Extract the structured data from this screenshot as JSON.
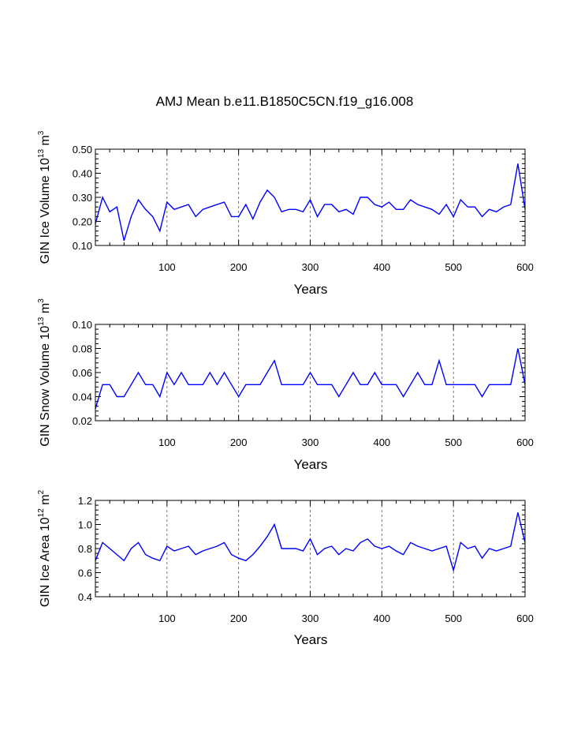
{
  "title": "AMJ Mean b.e11.B1850C5CN.f19_g16.008",
  "colors": {
    "series": "#0000ff",
    "axis": "#000000",
    "grid": "#555555"
  },
  "chart_data": [
    {
      "type": "line",
      "ylabel": {
        "main": "GIN Ice Volume 10",
        "exp": "13",
        "unit": " m",
        "unit_exp": "3"
      },
      "xlabel": "Years",
      "xlim": [
        0,
        600
      ],
      "ylim": [
        0.1,
        0.5
      ],
      "xticks": [
        100,
        200,
        300,
        400,
        500,
        600
      ],
      "xtick_labels": [
        "100",
        "200",
        "300",
        "400",
        "500",
        "600"
      ],
      "yticks": [
        0.1,
        0.2,
        0.3,
        0.4,
        0.5
      ],
      "ytick_labels": [
        "0.10",
        "0.20",
        "0.30",
        "0.40",
        "0.50"
      ],
      "grid": "vertical dashed at 100-year ticks",
      "series": [
        {
          "name": "GIN Ice Volume",
          "x": [
            0,
            10,
            20,
            30,
            40,
            50,
            60,
            70,
            80,
            90,
            100,
            110,
            120,
            130,
            140,
            150,
            160,
            170,
            180,
            190,
            200,
            210,
            220,
            230,
            240,
            250,
            260,
            270,
            280,
            290,
            300,
            310,
            320,
            330,
            340,
            350,
            360,
            370,
            380,
            390,
            400,
            410,
            420,
            430,
            440,
            450,
            460,
            470,
            480,
            490,
            500,
            510,
            520,
            530,
            540,
            550,
            560,
            570,
            580,
            590,
            600
          ],
          "y": [
            0.19,
            0.3,
            0.24,
            0.26,
            0.12,
            0.22,
            0.29,
            0.25,
            0.22,
            0.16,
            0.28,
            0.25,
            0.26,
            0.27,
            0.22,
            0.25,
            0.26,
            0.27,
            0.28,
            0.22,
            0.22,
            0.27,
            0.21,
            0.28,
            0.33,
            0.3,
            0.24,
            0.25,
            0.25,
            0.24,
            0.29,
            0.22,
            0.27,
            0.27,
            0.24,
            0.25,
            0.23,
            0.3,
            0.3,
            0.27,
            0.26,
            0.28,
            0.25,
            0.25,
            0.29,
            0.27,
            0.26,
            0.25,
            0.23,
            0.27,
            0.22,
            0.29,
            0.26,
            0.26,
            0.22,
            0.25,
            0.24,
            0.26,
            0.27,
            0.44,
            0.25
          ]
        }
      ]
    },
    {
      "type": "line",
      "ylabel": {
        "main": "GIN Snow Volume 10",
        "exp": "13",
        "unit": " m",
        "unit_exp": "3"
      },
      "xlabel": "Years",
      "xlim": [
        0,
        600
      ],
      "ylim": [
        0.02,
        0.1
      ],
      "xticks": [
        100,
        200,
        300,
        400,
        500,
        600
      ],
      "xtick_labels": [
        "100",
        "200",
        "300",
        "400",
        "500",
        "600"
      ],
      "yticks": [
        0.02,
        0.04,
        0.06,
        0.08,
        0.1
      ],
      "ytick_labels": [
        "0.02",
        "0.04",
        "0.06",
        "0.08",
        "0.10"
      ],
      "grid": "vertical dashed at 100-year ticks",
      "series": [
        {
          "name": "GIN Snow Volume",
          "x": [
            0,
            10,
            20,
            30,
            40,
            50,
            60,
            70,
            80,
            90,
            100,
            110,
            120,
            130,
            140,
            150,
            160,
            170,
            180,
            190,
            200,
            210,
            220,
            230,
            240,
            250,
            260,
            270,
            280,
            290,
            300,
            310,
            320,
            330,
            340,
            350,
            360,
            370,
            380,
            390,
            400,
            410,
            420,
            430,
            440,
            450,
            460,
            470,
            480,
            490,
            500,
            510,
            520,
            530,
            540,
            550,
            560,
            570,
            580,
            590,
            600
          ],
          "y": [
            0.03,
            0.05,
            0.05,
            0.04,
            0.04,
            0.05,
            0.06,
            0.05,
            0.05,
            0.04,
            0.06,
            0.05,
            0.06,
            0.05,
            0.05,
            0.05,
            0.06,
            0.05,
            0.06,
            0.05,
            0.04,
            0.05,
            0.05,
            0.05,
            0.06,
            0.07,
            0.05,
            0.05,
            0.05,
            0.05,
            0.06,
            0.05,
            0.05,
            0.05,
            0.04,
            0.05,
            0.06,
            0.05,
            0.05,
            0.06,
            0.05,
            0.05,
            0.05,
            0.04,
            0.05,
            0.06,
            0.05,
            0.05,
            0.07,
            0.05,
            0.05,
            0.05,
            0.05,
            0.05,
            0.04,
            0.05,
            0.05,
            0.05,
            0.05,
            0.08,
            0.05
          ]
        }
      ]
    },
    {
      "type": "line",
      "ylabel": {
        "main": "GIN Ice Area 10",
        "exp": "12",
        "unit": " m",
        "unit_exp": "2"
      },
      "xlabel": "Years",
      "xlim": [
        0,
        600
      ],
      "ylim": [
        0.4,
        1.2
      ],
      "xticks": [
        100,
        200,
        300,
        400,
        500,
        600
      ],
      "xtick_labels": [
        "100",
        "200",
        "300",
        "400",
        "500",
        "600"
      ],
      "yticks": [
        0.4,
        0.6,
        0.8,
        1.0,
        1.2
      ],
      "ytick_labels": [
        "0.4",
        "0.6",
        "0.8",
        "1.0",
        "1.2"
      ],
      "grid": "vertical dashed at 100-year ticks",
      "series": [
        {
          "name": "GIN Ice Area",
          "x": [
            0,
            10,
            20,
            30,
            40,
            50,
            60,
            70,
            80,
            90,
            100,
            110,
            120,
            130,
            140,
            150,
            160,
            170,
            180,
            190,
            200,
            210,
            220,
            230,
            240,
            250,
            260,
            270,
            280,
            290,
            300,
            310,
            320,
            330,
            340,
            350,
            360,
            370,
            380,
            390,
            400,
            410,
            420,
            430,
            440,
            450,
            460,
            470,
            480,
            490,
            500,
            510,
            520,
            530,
            540,
            550,
            560,
            570,
            580,
            590,
            600
          ],
          "y": [
            0.7,
            0.85,
            0.8,
            0.75,
            0.7,
            0.8,
            0.85,
            0.75,
            0.72,
            0.7,
            0.82,
            0.78,
            0.8,
            0.82,
            0.75,
            0.78,
            0.8,
            0.82,
            0.85,
            0.75,
            0.72,
            0.7,
            0.75,
            0.82,
            0.9,
            1.0,
            0.8,
            0.8,
            0.8,
            0.78,
            0.88,
            0.75,
            0.8,
            0.82,
            0.75,
            0.8,
            0.78,
            0.85,
            0.88,
            0.82,
            0.8,
            0.82,
            0.78,
            0.75,
            0.85,
            0.82,
            0.8,
            0.78,
            0.8,
            0.82,
            0.62,
            0.85,
            0.8,
            0.82,
            0.72,
            0.8,
            0.78,
            0.8,
            0.82,
            1.1,
            0.85
          ]
        }
      ]
    }
  ]
}
